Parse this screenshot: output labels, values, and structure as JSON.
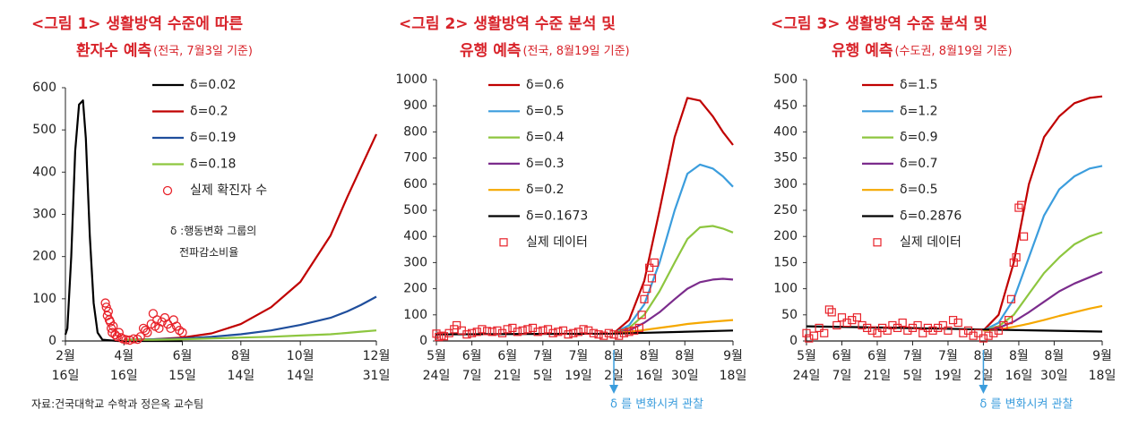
{
  "chart_data": [
    {
      "type": "line",
      "title": [
        "<그림 1> 생활방역 수준에 따른",
        "환자수 예측"
      ],
      "subtitle": "(전국, 7월3일 기준)",
      "xlim": [
        "02-16",
        "12-31"
      ],
      "xticks": [
        {
          "value": "02-16",
          "label": "2월 16일"
        },
        {
          "value": "04-16",
          "label": "4월 16일"
        },
        {
          "value": "06-15",
          "label": "6월 15일"
        },
        {
          "value": "08-14",
          "label": "8월 14일"
        },
        {
          "value": "10-14",
          "label": "10월 14일"
        },
        {
          "value": "12-31",
          "label": "12월 31일"
        }
      ],
      "ylim": [
        0,
        600
      ],
      "yticks": [
        0,
        100,
        200,
        300,
        400,
        500,
        600
      ],
      "series": [
        {
          "name": "δ=0.02",
          "color": "#000000",
          "x": [
            "02-16",
            "02-18",
            "02-22",
            "02-26",
            "03-01",
            "03-05",
            "03-08",
            "03-12",
            "03-16",
            "03-20",
            "03-25",
            "04-10",
            "06-15"
          ],
          "values": [
            15,
            30,
            200,
            450,
            560,
            570,
            480,
            250,
            90,
            20,
            3,
            0,
            0
          ]
        },
        {
          "name": "δ=0.2",
          "color": "#c00000",
          "x": [
            "04-16",
            "05-16",
            "06-15",
            "07-15",
            "08-14",
            "09-14",
            "10-14",
            "11-14",
            "12-01",
            "12-15",
            "12-31"
          ],
          "values": [
            3,
            4,
            8,
            18,
            40,
            80,
            140,
            250,
            340,
            410,
            490
          ]
        },
        {
          "name": "δ=0.19",
          "color": "#1f4e9c",
          "x": [
            "04-16",
            "05-16",
            "06-15",
            "07-15",
            "08-14",
            "09-14",
            "10-14",
            "11-14",
            "12-01",
            "12-15",
            "12-31"
          ],
          "values": [
            3,
            4,
            6,
            10,
            16,
            25,
            38,
            55,
            70,
            85,
            105
          ]
        },
        {
          "name": "δ=0.18",
          "color": "#8dc63f",
          "x": [
            "04-16",
            "05-16",
            "06-15",
            "07-15",
            "08-14",
            "09-14",
            "10-14",
            "11-14",
            "12-01",
            "12-15",
            "12-31"
          ],
          "values": [
            3,
            3,
            4,
            6,
            8,
            10,
            13,
            16,
            19,
            22,
            25
          ]
        },
        {
          "name": "실제 확진자 수",
          "color": "#e8222a",
          "marker": "circle",
          "x": [
            "03-28",
            "03-29",
            "03-30",
            "03-31",
            "04-01",
            "04-02",
            "04-03",
            "04-04",
            "04-05",
            "04-07",
            "04-09",
            "04-11",
            "04-13",
            "04-15",
            "04-18",
            "04-22",
            "04-26",
            "04-30",
            "05-03",
            "05-06",
            "05-08",
            "05-10",
            "05-14",
            "05-16",
            "05-18",
            "05-20",
            "05-22",
            "05-25",
            "05-28",
            "05-31",
            "06-03",
            "06-06",
            "06-09",
            "06-12",
            "06-15"
          ],
          "values": [
            90,
            80,
            60,
            70,
            50,
            45,
            30,
            20,
            35,
            15,
            10,
            20,
            8,
            5,
            3,
            2,
            5,
            4,
            10,
            30,
            25,
            20,
            40,
            65,
            35,
            50,
            30,
            45,
            55,
            40,
            30,
            50,
            35,
            25,
            20
          ]
        }
      ],
      "note": [
        "δ :행동변화 그룹의",
        "전파감소비율"
      ]
    },
    {
      "type": "line",
      "title": [
        "<그림 2> 생활방역 수준 분석 및",
        "유행 예측"
      ],
      "subtitle": "(전국, 8월19일 기준)",
      "xlim": [
        "05-24",
        "09-18"
      ],
      "xticks": [
        {
          "value": "05-24",
          "label": "5월 24일"
        },
        {
          "value": "06-07",
          "label": "6월 7일"
        },
        {
          "value": "06-21",
          "label": "6월 21일"
        },
        {
          "value": "07-05",
          "label": "7월 5일"
        },
        {
          "value": "07-19",
          "label": "7월 19일"
        },
        {
          "value": "08-02",
          "label": "8월 2일"
        },
        {
          "value": "08-16",
          "label": "8월 16일"
        },
        {
          "value": "08-30",
          "label": "8월 30일"
        },
        {
          "value": "09-18",
          "label": "9월 18일"
        }
      ],
      "ylim": [
        0,
        1000
      ],
      "yticks": [
        0,
        100,
        200,
        300,
        400,
        500,
        600,
        700,
        800,
        900,
        1000
      ],
      "series": [
        {
          "name": "δ=0.6",
          "color": "#c00000",
          "x": [
            "08-02",
            "08-08",
            "08-14",
            "08-20",
            "08-26",
            "08-31",
            "09-05",
            "09-10",
            "09-14",
            "09-18"
          ],
          "values": [
            30,
            80,
            230,
            500,
            780,
            930,
            920,
            860,
            800,
            750
          ]
        },
        {
          "name": "δ=0.5",
          "color": "#3b9ddd",
          "x": [
            "08-02",
            "08-08",
            "08-14",
            "08-20",
            "08-26",
            "08-31",
            "09-05",
            "09-10",
            "09-14",
            "09-18"
          ],
          "values": [
            30,
            60,
            140,
            300,
            500,
            640,
            675,
            660,
            630,
            590
          ]
        },
        {
          "name": "δ=0.4",
          "color": "#8dc63f",
          "x": [
            "08-02",
            "08-08",
            "08-14",
            "08-20",
            "08-26",
            "08-31",
            "09-05",
            "09-10",
            "09-14",
            "09-18"
          ],
          "values": [
            30,
            50,
            100,
            190,
            300,
            390,
            435,
            440,
            430,
            415
          ]
        },
        {
          "name": "δ=0.3",
          "color": "#7b2c8c",
          "x": [
            "08-02",
            "08-08",
            "08-14",
            "08-20",
            "08-26",
            "08-31",
            "09-05",
            "09-10",
            "09-14",
            "09-18"
          ],
          "values": [
            30,
            40,
            70,
            110,
            160,
            200,
            225,
            235,
            238,
            235
          ]
        },
        {
          "name": "δ=0.2",
          "color": "#f5a800",
          "x": [
            "08-02",
            "08-08",
            "08-14",
            "08-20",
            "08-26",
            "08-31",
            "09-05",
            "09-10",
            "09-14",
            "09-18"
          ],
          "values": [
            30,
            35,
            42,
            50,
            58,
            65,
            70,
            74,
            77,
            80
          ]
        },
        {
          "name": "δ=0.1673",
          "color": "#000000",
          "x": [
            "05-24",
            "07-01",
            "08-02",
            "09-18"
          ],
          "values": [
            25,
            27,
            28,
            40
          ]
        },
        {
          "name": "실제 데이터",
          "color": "#e8222a",
          "marker": "square",
          "x": [
            "05-24",
            "05-25",
            "05-26",
            "05-27",
            "05-29",
            "05-31",
            "06-01",
            "06-03",
            "06-05",
            "06-07",
            "06-09",
            "06-11",
            "06-13",
            "06-15",
            "06-17",
            "06-19",
            "06-21",
            "06-23",
            "06-25",
            "06-27",
            "06-29",
            "07-01",
            "07-03",
            "07-05",
            "07-07",
            "07-09",
            "07-11",
            "07-13",
            "07-15",
            "07-17",
            "07-19",
            "07-21",
            "07-23",
            "07-25",
            "07-27",
            "07-29",
            "07-31",
            "08-02",
            "08-04",
            "08-06",
            "08-08",
            "08-10",
            "08-12",
            "08-13",
            "08-14",
            "08-15",
            "08-16",
            "08-17",
            "08-18"
          ],
          "values": [
            28,
            15,
            20,
            18,
            30,
            45,
            60,
            40,
            25,
            30,
            35,
            45,
            38,
            35,
            40,
            30,
            45,
            50,
            35,
            40,
            45,
            50,
            35,
            40,
            45,
            30,
            35,
            40,
            25,
            30,
            35,
            45,
            40,
            30,
            25,
            20,
            30,
            25,
            20,
            30,
            35,
            40,
            50,
            100,
            160,
            200,
            280,
            240,
            300
          ]
        }
      ],
      "annotation": {
        "text": "δ 를 변화시켜 관찰",
        "x": "08-02"
      }
    },
    {
      "type": "line",
      "title": [
        "<그림 3> 생활방역 수준 분석 및",
        "유행 예측"
      ],
      "subtitle": "(수도권, 8월19일 기준)",
      "xlim": [
        "05-24",
        "09-18"
      ],
      "xticks": [
        {
          "value": "05-24",
          "label": "5월 24일"
        },
        {
          "value": "06-07",
          "label": "6월 7일"
        },
        {
          "value": "06-21",
          "label": "6월 21일"
        },
        {
          "value": "07-05",
          "label": "7월 5일"
        },
        {
          "value": "07-19",
          "label": "7월 19일"
        },
        {
          "value": "08-02",
          "label": "8월 2일"
        },
        {
          "value": "08-16",
          "label": "8월 16일"
        },
        {
          "value": "08-30",
          "label": "8월 30일"
        },
        {
          "value": "09-18",
          "label": "9월 18일"
        }
      ],
      "ylim": [
        0,
        500
      ],
      "yticks": [
        0,
        50,
        100,
        150,
        200,
        250,
        300,
        350,
        400,
        450,
        500
      ],
      "series": [
        {
          "name": "δ=1.5",
          "color": "#c00000",
          "x": [
            "08-02",
            "08-08",
            "08-14",
            "08-20",
            "08-26",
            "09-01",
            "09-07",
            "09-13",
            "09-18"
          ],
          "values": [
            20,
            50,
            150,
            300,
            390,
            430,
            455,
            465,
            468
          ]
        },
        {
          "name": "δ=1.2",
          "color": "#3b9ddd",
          "x": [
            "08-02",
            "08-08",
            "08-14",
            "08-20",
            "08-26",
            "09-01",
            "09-07",
            "09-13",
            "09-18"
          ],
          "values": [
            20,
            35,
            80,
            160,
            240,
            290,
            315,
            330,
            335
          ]
        },
        {
          "name": "δ=0.9",
          "color": "#8dc63f",
          "x": [
            "08-02",
            "08-08",
            "08-14",
            "08-20",
            "08-26",
            "09-01",
            "09-07",
            "09-13",
            "09-18"
          ],
          "values": [
            20,
            28,
            50,
            90,
            130,
            160,
            185,
            200,
            208
          ]
        },
        {
          "name": "δ=0.7",
          "color": "#7b2c8c",
          "x": [
            "08-02",
            "08-08",
            "08-14",
            "08-20",
            "08-26",
            "09-01",
            "09-07",
            "09-13",
            "09-18"
          ],
          "values": [
            20,
            25,
            37,
            55,
            75,
            95,
            110,
            122,
            132
          ]
        },
        {
          "name": "δ=0.5",
          "color": "#f5a800",
          "x": [
            "08-02",
            "08-08",
            "08-14",
            "08-20",
            "08-26",
            "09-01",
            "09-07",
            "09-13",
            "09-18"
          ],
          "values": [
            20,
            22,
            27,
            33,
            40,
            48,
            55,
            62,
            67
          ]
        },
        {
          "name": "δ=0.2876",
          "color": "#000000",
          "x": [
            "05-24",
            "07-01",
            "08-02",
            "09-18"
          ],
          "values": [
            28,
            25,
            22,
            18
          ]
        },
        {
          "name": "실제 데이터",
          "color": "#e8222a",
          "marker": "square",
          "x": [
            "05-24",
            "05-25",
            "05-27",
            "05-29",
            "05-31",
            "06-02",
            "06-03",
            "06-05",
            "06-07",
            "06-09",
            "06-11",
            "06-13",
            "06-15",
            "06-17",
            "06-19",
            "06-21",
            "06-23",
            "06-25",
            "06-27",
            "06-29",
            "07-01",
            "07-03",
            "07-05",
            "07-07",
            "07-09",
            "07-11",
            "07-13",
            "07-15",
            "07-17",
            "07-19",
            "07-21",
            "07-23",
            "07-25",
            "07-27",
            "07-29",
            "07-31",
            "08-02",
            "08-04",
            "08-06",
            "08-08",
            "08-10",
            "08-12",
            "08-13",
            "08-14",
            "08-15",
            "08-16",
            "08-17",
            "08-18"
          ],
          "values": [
            15,
            5,
            10,
            25,
            15,
            60,
            55,
            30,
            45,
            35,
            40,
            45,
            30,
            25,
            20,
            15,
            25,
            20,
            30,
            25,
            35,
            20,
            25,
            30,
            15,
            25,
            20,
            25,
            30,
            20,
            40,
            35,
            15,
            20,
            10,
            15,
            5,
            10,
            15,
            20,
            30,
            40,
            80,
            150,
            160,
            255,
            260,
            200
          ]
        }
      ],
      "annotation": {
        "text": "δ 를 변화시켜 관찰",
        "x": "08-02"
      }
    }
  ],
  "source": "자료:건국대학교 수학과 정은옥 교수팀"
}
